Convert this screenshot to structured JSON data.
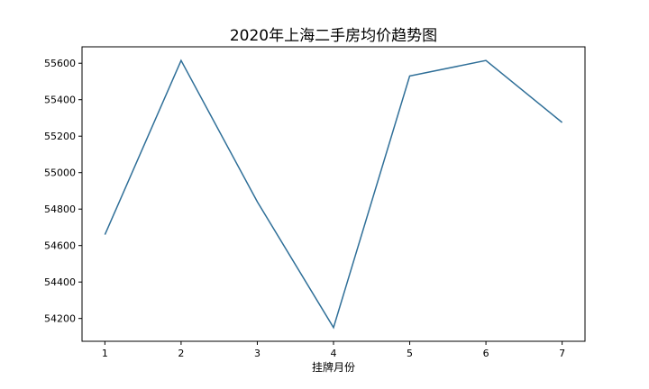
{
  "chart_data": {
    "type": "line",
    "title": "2020年上海二手房均价趋势图",
    "xlabel": "挂牌月份",
    "ylabel": "",
    "x": [
      1,
      2,
      3,
      4,
      5,
      6,
      7
    ],
    "series": [
      {
        "values": [
          54660,
          55615,
          54840,
          54150,
          55530,
          55615,
          55275
        ],
        "color": "#2f6f98"
      }
    ],
    "xticks": [
      1,
      2,
      3,
      4,
      5,
      6,
      7
    ],
    "yticks": [
      54200,
      54400,
      54600,
      54800,
      55000,
      55200,
      55400,
      55600
    ],
    "xlim": [
      0.7,
      7.3
    ],
    "ylim": [
      54075,
      55690
    ],
    "grid": false,
    "legend": "none"
  }
}
